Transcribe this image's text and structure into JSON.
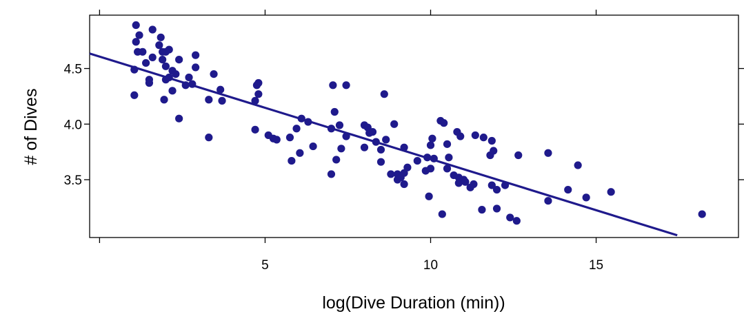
{
  "chart_data": {
    "type": "scatter",
    "title": "",
    "xlabel": "log(Dive Duration (min))",
    "ylabel": "# of Dives",
    "xlim": [
      -0.3,
      19.3
    ],
    "ylim": [
      2.98,
      4.98
    ],
    "xticks": [
      5,
      10,
      15
    ],
    "xtick_labels": [
      "5",
      "10",
      "15"
    ],
    "yticks": [
      3.5,
      4.0,
      4.5
    ],
    "ytick_labels": [
      "3.5",
      "4.0",
      "4.5"
    ],
    "grid": false,
    "legend": "none",
    "colors": {
      "points": "#1f1a8c",
      "line": "#1f1a8c",
      "axes": "#000000"
    },
    "regression_line": {
      "x": [
        -0.3,
        17.45
      ],
      "y": [
        4.635,
        3.0
      ]
    },
    "points": [
      [
        1.1,
        4.89
      ],
      [
        1.1,
        4.74
      ],
      [
        1.15,
        4.65
      ],
      [
        1.2,
        4.8
      ],
      [
        1.3,
        4.65
      ],
      [
        1.05,
        4.49
      ],
      [
        1.05,
        4.26
      ],
      [
        1.4,
        4.55
      ],
      [
        1.6,
        4.6
      ],
      [
        1.5,
        4.4
      ],
      [
        1.5,
        4.37
      ],
      [
        1.6,
        4.85
      ],
      [
        1.8,
        4.71
      ],
      [
        1.85,
        4.78
      ],
      [
        1.9,
        4.65
      ],
      [
        2.0,
        4.65
      ],
      [
        1.9,
        4.58
      ],
      [
        2.1,
        4.67
      ],
      [
        2.0,
        4.52
      ],
      [
        2.2,
        4.48
      ],
      [
        2.0,
        4.4
      ],
      [
        2.1,
        4.42
      ],
      [
        2.3,
        4.45
      ],
      [
        2.4,
        4.58
      ],
      [
        1.95,
        4.22
      ],
      [
        2.2,
        4.3
      ],
      [
        2.4,
        4.05
      ],
      [
        2.6,
        4.35
      ],
      [
        2.7,
        4.42
      ],
      [
        2.8,
        4.36
      ],
      [
        2.9,
        4.62
      ],
      [
        2.9,
        4.51
      ],
      [
        3.3,
        3.88
      ],
      [
        3.3,
        4.22
      ],
      [
        3.45,
        4.45
      ],
      [
        3.65,
        4.31
      ],
      [
        3.7,
        4.21
      ],
      [
        4.75,
        4.35
      ],
      [
        4.8,
        4.37
      ],
      [
        4.8,
        4.27
      ],
      [
        4.7,
        4.21
      ],
      [
        4.7,
        3.95
      ],
      [
        5.1,
        3.9
      ],
      [
        5.25,
        3.87
      ],
      [
        5.35,
        3.86
      ],
      [
        5.75,
        3.88
      ],
      [
        5.8,
        3.67
      ],
      [
        5.95,
        3.96
      ],
      [
        6.05,
        3.74
      ],
      [
        6.1,
        4.05
      ],
      [
        6.3,
        4.02
      ],
      [
        6.45,
        3.8
      ],
      [
        7.05,
        4.35
      ],
      [
        7.1,
        4.11
      ],
      [
        7.25,
        3.99
      ],
      [
        7.0,
        3.96
      ],
      [
        7.0,
        3.55
      ],
      [
        7.15,
        3.68
      ],
      [
        7.3,
        3.78
      ],
      [
        7.45,
        3.89
      ],
      [
        7.45,
        4.35
      ],
      [
        8.0,
        3.79
      ],
      [
        8.0,
        3.99
      ],
      [
        8.1,
        3.97
      ],
      [
        8.15,
        3.92
      ],
      [
        8.25,
        3.93
      ],
      [
        8.35,
        3.84
      ],
      [
        8.5,
        3.77
      ],
      [
        8.5,
        3.66
      ],
      [
        8.6,
        4.27
      ],
      [
        8.65,
        3.86
      ],
      [
        8.8,
        3.55
      ],
      [
        8.9,
        4.0
      ],
      [
        9.0,
        3.55
      ],
      [
        9.0,
        3.5
      ],
      [
        9.1,
        3.52
      ],
      [
        9.2,
        3.56
      ],
      [
        9.2,
        3.79
      ],
      [
        9.2,
        3.46
      ],
      [
        9.3,
        3.61
      ],
      [
        9.6,
        3.67
      ],
      [
        9.85,
        3.58
      ],
      [
        9.9,
        3.7
      ],
      [
        9.95,
        3.35
      ],
      [
        10.0,
        3.6
      ],
      [
        10.0,
        3.81
      ],
      [
        10.05,
        3.87
      ],
      [
        10.1,
        3.69
      ],
      [
        10.3,
        4.03
      ],
      [
        10.4,
        4.01
      ],
      [
        10.35,
        3.19
      ],
      [
        10.5,
        3.82
      ],
      [
        10.5,
        3.6
      ],
      [
        10.55,
        3.7
      ],
      [
        10.7,
        3.54
      ],
      [
        10.8,
        3.93
      ],
      [
        10.85,
        3.52
      ],
      [
        10.85,
        3.47
      ],
      [
        10.9,
        3.89
      ],
      [
        11.0,
        3.5
      ],
      [
        11.05,
        3.48
      ],
      [
        11.2,
        3.43
      ],
      [
        11.3,
        3.46
      ],
      [
        11.35,
        3.9
      ],
      [
        11.6,
        3.88
      ],
      [
        11.55,
        3.23
      ],
      [
        11.8,
        3.72
      ],
      [
        11.85,
        3.85
      ],
      [
        11.85,
        3.45
      ],
      [
        11.9,
        3.76
      ],
      [
        12.0,
        3.24
      ],
      [
        12.0,
        3.41
      ],
      [
        12.25,
        3.45
      ],
      [
        12.4,
        3.16
      ],
      [
        12.6,
        3.13
      ],
      [
        12.65,
        3.72
      ],
      [
        13.55,
        3.31
      ],
      [
        13.55,
        3.74
      ],
      [
        14.15,
        3.41
      ],
      [
        14.45,
        3.63
      ],
      [
        14.7,
        3.34
      ],
      [
        15.45,
        3.39
      ],
      [
        18.2,
        3.19
      ]
    ]
  }
}
